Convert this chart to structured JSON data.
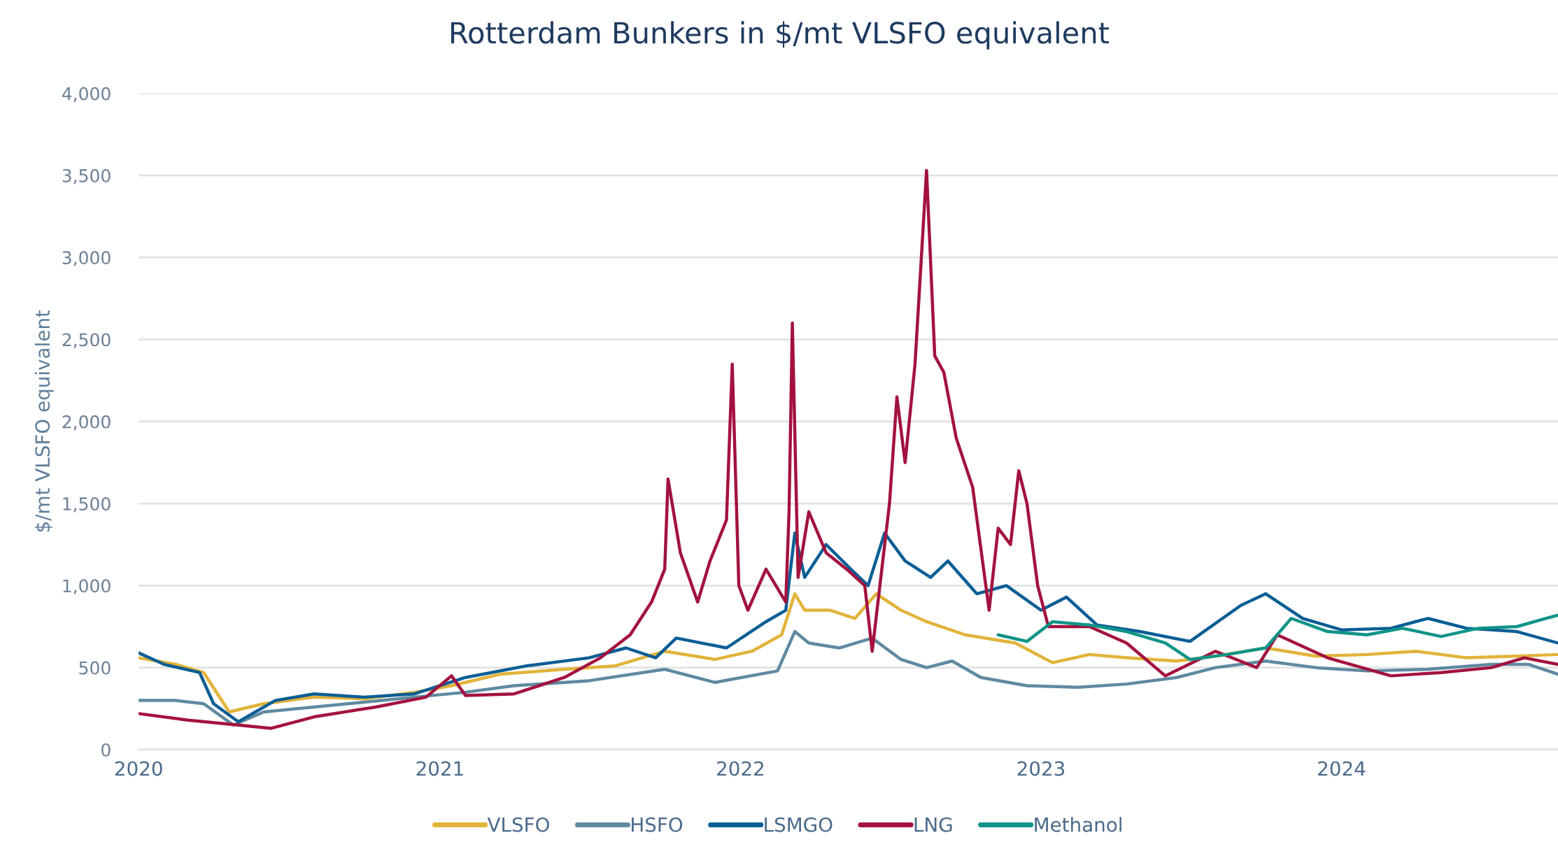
{
  "chart_data": {
    "type": "line",
    "title": "Rotterdam Bunkers in $/mt VLSFO equivalent",
    "ylabel": "$/mt VLSFO equivalent",
    "xlim": [
      "2020-01-01",
      "2024-09-20"
    ],
    "xticks": [
      {
        "value": "2020-01-01",
        "label": "2020"
      },
      {
        "value": "2021-01-01",
        "label": "2021"
      },
      {
        "value": "2022-01-01",
        "label": "2022"
      },
      {
        "value": "2023-01-01",
        "label": "2023"
      },
      {
        "value": "2024-01-01",
        "label": "2024"
      }
    ],
    "ylim": [
      0,
      4000
    ],
    "yticks": [
      {
        "value": 0,
        "label": "0"
      },
      {
        "value": 500,
        "label": "500"
      },
      {
        "value": 1000,
        "label": "1,000"
      },
      {
        "value": 1500,
        "label": "1,500"
      },
      {
        "value": 2000,
        "label": "2,000"
      },
      {
        "value": 2500,
        "label": "2,500"
      },
      {
        "value": 3000,
        "label": "3,000"
      },
      {
        "value": 3500,
        "label": "3,500"
      },
      {
        "value": 4000,
        "label": "4,000"
      }
    ],
    "grid": "y",
    "legend": "bottom",
    "marker": "none",
    "line_style": "solid",
    "series": [
      {
        "name": "VLSFO",
        "color": "#e2b33a",
        "x": [
          "2020-01-01",
          "2020-02-15",
          "2020-03-20",
          "2020-04-20",
          "2020-06-01",
          "2020-08-01",
          "2020-10-01",
          "2020-12-01",
          "2021-01-15",
          "2021-03-15",
          "2021-06-01",
          "2021-08-01",
          "2021-10-01",
          "2021-12-01",
          "2022-01-15",
          "2022-02-20",
          "2022-03-08",
          "2022-03-20",
          "2022-04-20",
          "2022-05-20",
          "2022-06-15",
          "2022-07-15",
          "2022-08-15",
          "2022-10-01",
          "2022-12-01",
          "2023-01-15",
          "2023-03-01",
          "2023-04-15",
          "2023-06-15",
          "2023-08-01",
          "2023-10-01",
          "2023-12-01",
          "2024-02-01",
          "2024-04-01",
          "2024-06-01",
          "2024-08-01",
          "2024-09-20"
        ],
        "values": [
          560,
          520,
          470,
          230,
          280,
          320,
          310,
          350,
          390,
          460,
          490,
          510,
          600,
          550,
          600,
          700,
          950,
          850,
          850,
          800,
          950,
          850,
          780,
          700,
          650,
          530,
          580,
          560,
          540,
          570,
          620,
          570,
          580,
          600,
          560,
          570,
          580
        ]
      },
      {
        "name": "HSFO",
        "color": "#5f8aa0",
        "x": [
          "2020-01-01",
          "2020-02-15",
          "2020-03-20",
          "2020-04-25",
          "2020-06-01",
          "2020-08-01",
          "2020-10-01",
          "2020-12-01",
          "2021-02-01",
          "2021-04-01",
          "2021-07-01",
          "2021-10-01",
          "2021-12-01",
          "2022-02-15",
          "2022-03-08",
          "2022-03-25",
          "2022-05-01",
          "2022-06-10",
          "2022-07-15",
          "2022-08-15",
          "2022-09-15",
          "2022-10-20",
          "2022-12-15",
          "2023-02-15",
          "2023-04-15",
          "2023-06-15",
          "2023-08-01",
          "2023-10-01",
          "2023-12-01",
          "2024-02-01",
          "2024-04-15",
          "2024-07-01",
          "2024-08-15",
          "2024-09-20"
        ],
        "values": [
          300,
          300,
          280,
          150,
          230,
          260,
          290,
          320,
          350,
          390,
          420,
          490,
          410,
          480,
          720,
          650,
          620,
          680,
          550,
          500,
          540,
          440,
          390,
          380,
          400,
          440,
          500,
          540,
          500,
          480,
          490,
          520,
          520,
          460
        ]
      },
      {
        "name": "LSMGO",
        "color": "#0a5e95",
        "x": [
          "2020-01-01",
          "2020-02-01",
          "2020-03-15",
          "2020-04-01",
          "2020-05-01",
          "2020-06-15",
          "2020-08-01",
          "2020-10-01",
          "2020-12-01",
          "2021-02-01",
          "2021-04-15",
          "2021-07-01",
          "2021-08-15",
          "2021-09-20",
          "2021-10-15",
          "2021-12-15",
          "2022-02-01",
          "2022-02-25",
          "2022-03-08",
          "2022-03-20",
          "2022-04-15",
          "2022-05-15",
          "2022-06-05",
          "2022-06-25",
          "2022-07-20",
          "2022-08-20",
          "2022-09-10",
          "2022-10-15",
          "2022-11-20",
          "2023-01-01",
          "2023-02-01",
          "2023-03-10",
          "2023-05-01",
          "2023-07-01",
          "2023-09-01",
          "2023-10-01",
          "2023-11-15",
          "2024-01-01",
          "2024-03-01",
          "2024-04-15",
          "2024-06-01",
          "2024-08-01",
          "2024-09-20"
        ],
        "values": [
          590,
          520,
          470,
          280,
          170,
          300,
          340,
          320,
          340,
          440,
          510,
          560,
          620,
          560,
          680,
          620,
          780,
          850,
          1320,
          1050,
          1250,
          1100,
          1000,
          1320,
          1150,
          1050,
          1150,
          950,
          1000,
          850,
          930,
          760,
          720,
          660,
          880,
          950,
          800,
          730,
          740,
          800,
          740,
          720,
          650
        ]
      },
      {
        "name": "LNG",
        "color": "#a3123f",
        "x": [
          "2020-01-01",
          "2020-03-01",
          "2020-05-01",
          "2020-06-10",
          "2020-08-01",
          "2020-10-15",
          "2020-12-15",
          "2021-01-15",
          "2021-02-01",
          "2021-04-01",
          "2021-06-01",
          "2021-07-15",
          "2021-08-20",
          "2021-09-15",
          "2021-10-01",
          "2021-10-05",
          "2021-10-20",
          "2021-11-10",
          "2021-11-25",
          "2021-12-15",
          "2021-12-22",
          "2021-12-30",
          "2022-01-10",
          "2022-02-01",
          "2022-02-25",
          "2022-03-01",
          "2022-03-05",
          "2022-03-12",
          "2022-03-25",
          "2022-04-15",
          "2022-05-10",
          "2022-06-01",
          "2022-06-10",
          "2022-07-01",
          "2022-07-10",
          "2022-07-20",
          "2022-08-01",
          "2022-08-15",
          "2022-08-25",
          "2022-09-05",
          "2022-09-20",
          "2022-10-10",
          "2022-10-30",
          "2022-11-10",
          "2022-11-25",
          "2022-12-05",
          "2022-12-15",
          "2022-12-28",
          "2023-01-10",
          "2023-03-01",
          "2023-04-15",
          "2023-06-01",
          "2023-08-01",
          "2023-09-20",
          "2023-10-15",
          "2023-12-15",
          "2024-03-01",
          "2024-05-01",
          "2024-07-01",
          "2024-08-10",
          "2024-09-20"
        ],
        "values": [
          220,
          180,
          150,
          130,
          200,
          260,
          320,
          450,
          330,
          340,
          440,
          560,
          700,
          900,
          1100,
          1650,
          1200,
          900,
          1150,
          1400,
          2350,
          1000,
          850,
          1100,
          900,
          1450,
          2600,
          1050,
          1450,
          1200,
          1100,
          1000,
          600,
          1500,
          2150,
          1750,
          2350,
          3530,
          2400,
          2300,
          1900,
          1600,
          850,
          1350,
          1250,
          1700,
          1500,
          1000,
          750,
          750,
          650,
          450,
          600,
          500,
          700,
          560,
          450,
          470,
          500,
          560,
          520
        ]
      },
      {
        "name": "Methanol",
        "color": "#0f9488",
        "x": [
          "2022-11-10",
          "2022-12-15",
          "2023-01-15",
          "2023-03-01",
          "2023-04-15",
          "2023-06-01",
          "2023-07-01",
          "2023-08-15",
          "2023-10-01",
          "2023-11-01",
          "2023-12-15",
          "2024-02-01",
          "2024-03-15",
          "2024-05-01",
          "2024-06-15",
          "2024-08-01",
          "2024-09-05",
          "2024-09-20"
        ],
        "values": [
          700,
          660,
          780,
          760,
          720,
          650,
          550,
          580,
          620,
          800,
          720,
          700,
          740,
          690,
          740,
          750,
          800,
          820
        ]
      }
    ]
  }
}
